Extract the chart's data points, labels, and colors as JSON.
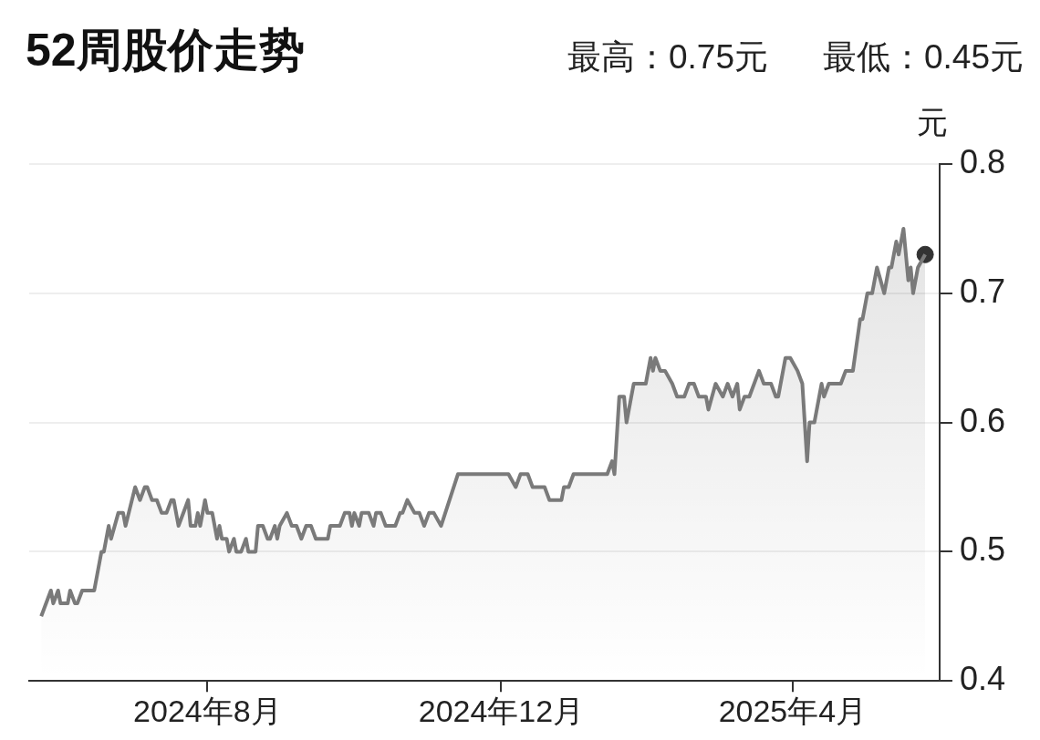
{
  "chart_data": {
    "type": "area",
    "title": "52周股价走势",
    "annotations": [
      "最高：0.75元",
      "最低：0.45元"
    ],
    "ylabel": "元",
    "xlim": [
      "2024-05-19",
      "2025-06-01"
    ],
    "xticks": [
      {
        "value": "2024-08-01",
        "label": "2024年8月"
      },
      {
        "value": "2024-12-01",
        "label": "2024年12月"
      },
      {
        "value": "2025-04-01",
        "label": "2025年4月"
      }
    ],
    "ylim": [
      0.4,
      0.8
    ],
    "yticks": [
      0.4,
      0.5,
      0.6,
      0.7,
      0.8
    ],
    "grid": "y",
    "series": [
      {
        "type": "area",
        "color": "#7a7a7a",
        "marker": "none",
        "x": [
          "2024-05-24",
          "2024-05-28",
          "2024-05-29",
          "2024-05-31",
          "2024-06-01",
          "2024-06-04",
          "2024-06-05",
          "2024-06-07",
          "2024-06-08",
          "2024-06-10",
          "2024-06-15",
          "2024-06-17",
          "2024-06-18",
          "2024-06-19",
          "2024-06-21",
          "2024-06-22",
          "2024-06-25",
          "2024-06-27",
          "2024-06-28",
          "2024-07-02",
          "2024-07-04",
          "2024-07-06",
          "2024-07-07",
          "2024-07-09",
          "2024-07-11",
          "2024-07-13",
          "2024-07-15",
          "2024-07-17",
          "2024-07-18",
          "2024-07-20",
          "2024-07-24",
          "2024-07-25",
          "2024-07-27",
          "2024-07-28",
          "2024-07-29",
          "2024-07-31",
          "2024-08-01",
          "2024-08-03",
          "2024-08-05",
          "2024-08-06",
          "2024-08-07",
          "2024-08-09",
          "2024-08-10",
          "2024-08-12",
          "2024-08-13",
          "2024-08-15",
          "2024-08-17",
          "2024-08-18",
          "2024-08-21",
          "2024-08-22",
          "2024-08-24",
          "2024-08-26",
          "2024-08-27",
          "2024-08-29",
          "2024-08-30",
          "2024-08-31",
          "2024-09-03",
          "2024-09-05",
          "2024-09-07",
          "2024-09-09",
          "2024-09-11",
          "2024-09-13",
          "2024-09-15",
          "2024-09-20",
          "2024-09-21",
          "2024-09-25",
          "2024-09-27",
          "2024-09-29",
          "2024-09-30",
          "2024-10-01",
          "2024-10-03",
          "2024-10-04",
          "2024-10-07",
          "2024-10-09",
          "2024-10-10",
          "2024-10-12",
          "2024-10-14",
          "2024-10-18",
          "2024-10-20",
          "2024-10-21",
          "2024-10-23",
          "2024-10-26",
          "2024-10-28",
          "2024-10-30",
          "2024-11-01",
          "2024-11-03",
          "2024-11-06",
          "2024-11-13",
          "2024-12-04",
          "2024-12-07",
          "2024-12-09",
          "2024-12-12",
          "2024-12-14",
          "2024-12-19",
          "2024-12-21",
          "2024-12-26",
          "2024-12-27",
          "2024-12-29",
          "2024-12-31",
          "2025-01-14",
          "2025-01-16",
          "2025-01-17",
          "2025-01-19",
          "2025-01-21",
          "2025-01-22",
          "2025-01-24",
          "2025-01-25",
          "2025-01-30",
          "2025-02-01",
          "2025-02-02",
          "2025-02-03",
          "2025-02-05",
          "2025-02-07",
          "2025-02-10",
          "2025-02-12",
          "2025-02-15",
          "2025-02-17",
          "2025-02-19",
          "2025-02-21",
          "2025-02-24",
          "2025-02-25",
          "2025-02-28",
          "2025-03-03",
          "2025-03-05",
          "2025-03-07",
          "2025-03-09",
          "2025-03-10",
          "2025-03-12",
          "2025-03-14",
          "2025-03-18",
          "2025-03-20",
          "2025-03-23",
          "2025-03-25",
          "2025-03-26",
          "2025-03-29",
          "2025-03-31",
          "2025-04-03",
          "2025-04-05",
          "2025-04-07",
          "2025-04-08",
          "2025-04-10",
          "2025-04-13",
          "2025-04-14",
          "2025-04-16",
          "2025-04-21",
          "2025-04-23",
          "2025-04-26",
          "2025-04-29",
          "2025-04-30",
          "2025-05-02",
          "2025-05-04",
          "2025-05-06",
          "2025-05-09",
          "2025-05-11",
          "2025-05-12",
          "2025-05-14",
          "2025-05-15",
          "2025-05-17",
          "2025-05-19",
          "2025-05-20",
          "2025-05-21",
          "2025-05-23",
          "2025-05-26"
        ],
        "values": [
          0.45,
          0.47,
          0.46,
          0.47,
          0.46,
          0.46,
          0.47,
          0.46,
          0.46,
          0.47,
          0.47,
          0.49,
          0.5,
          0.5,
          0.52,
          0.51,
          0.53,
          0.53,
          0.52,
          0.55,
          0.54,
          0.55,
          0.55,
          0.54,
          0.54,
          0.53,
          0.53,
          0.54,
          0.54,
          0.52,
          0.54,
          0.52,
          0.52,
          0.53,
          0.52,
          0.54,
          0.53,
          0.53,
          0.51,
          0.52,
          0.51,
          0.51,
          0.5,
          0.51,
          0.5,
          0.5,
          0.51,
          0.5,
          0.5,
          0.52,
          0.52,
          0.51,
          0.51,
          0.52,
          0.51,
          0.52,
          0.53,
          0.52,
          0.52,
          0.51,
          0.52,
          0.52,
          0.51,
          0.51,
          0.52,
          0.52,
          0.53,
          0.53,
          0.52,
          0.53,
          0.52,
          0.53,
          0.53,
          0.52,
          0.53,
          0.53,
          0.52,
          0.52,
          0.53,
          0.53,
          0.54,
          0.53,
          0.53,
          0.52,
          0.53,
          0.53,
          0.52,
          0.56,
          0.56,
          0.55,
          0.56,
          0.56,
          0.55,
          0.55,
          0.54,
          0.54,
          0.55,
          0.55,
          0.56,
          0.56,
          0.57,
          0.56,
          0.62,
          0.62,
          0.6,
          0.62,
          0.63,
          0.63,
          0.65,
          0.64,
          0.65,
          0.64,
          0.64,
          0.63,
          0.62,
          0.62,
          0.63,
          0.63,
          0.62,
          0.62,
          0.61,
          0.63,
          0.62,
          0.63,
          0.62,
          0.63,
          0.61,
          0.62,
          0.62,
          0.64,
          0.63,
          0.63,
          0.62,
          0.62,
          0.65,
          0.65,
          0.64,
          0.63,
          0.57,
          0.6,
          0.6,
          0.63,
          0.62,
          0.63,
          0.63,
          0.64,
          0.64,
          0.68,
          0.68,
          0.7,
          0.7,
          0.72,
          0.7,
          0.72,
          0.72,
          0.74,
          0.73,
          0.75,
          0.71,
          0.72,
          0.7,
          0.72,
          0.73
        ]
      },
      {
        "type": "scatter",
        "color": "#333333",
        "marker": "circle",
        "x": [
          "2025-05-26"
        ],
        "values": [
          0.73
        ]
      }
    ]
  }
}
